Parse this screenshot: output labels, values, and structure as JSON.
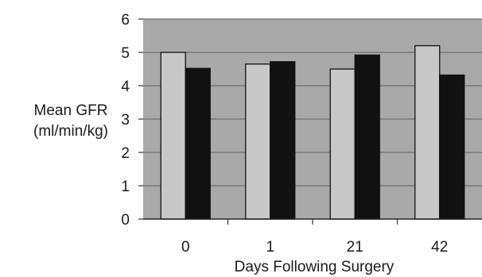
{
  "chart_data": {
    "type": "bar",
    "title": "",
    "xlabel": "Days Following Surgery",
    "ylabel_lines": [
      "Mean GFR",
      "(ml/min/kg)"
    ],
    "categories": [
      "0",
      "1",
      "21",
      "42"
    ],
    "series": [
      {
        "values": [
          5.0,
          4.65,
          4.5,
          5.2
        ],
        "color": "#c8c8c8"
      },
      {
        "values": [
          4.52,
          4.72,
          4.92,
          4.32
        ],
        "color": "#111111"
      }
    ],
    "ylim": [
      0,
      6
    ],
    "yticks": [
      "0",
      "1",
      "2",
      "3",
      "4",
      "5",
      "6"
    ],
    "grid": true,
    "plot_background": "#a9a9a9",
    "gridline_color": "#6e6e6e"
  }
}
